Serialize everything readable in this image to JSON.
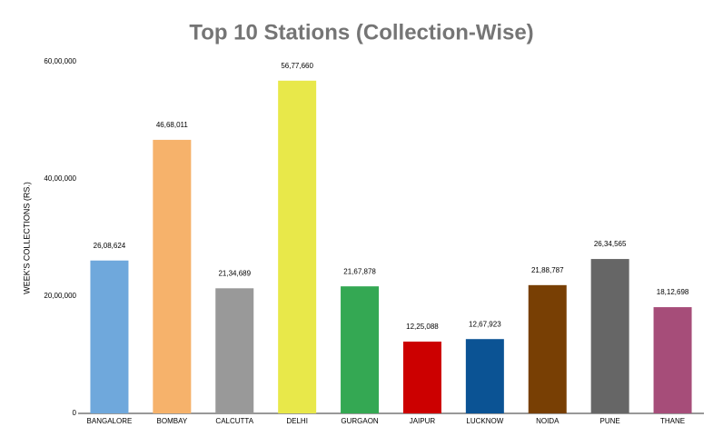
{
  "chart_data": {
    "type": "bar",
    "title": "Top 10 Stations (Collection-Wise)",
    "y_label": "WEEK'S COLLECTIONS (RS.)",
    "categories": [
      "BANGALORE",
      "BOMBAY",
      "CALCUTTA",
      "DELHI",
      "GURGAON",
      "JAIPUR",
      "LUCKNOW",
      "NOIDA",
      "PUNE",
      "THANE"
    ],
    "values": [
      2608624,
      4668011,
      2134689,
      5677660,
      2167878,
      1225088,
      1267923,
      2188787,
      2634565,
      1812698
    ],
    "value_labels": [
      "26,08,624",
      "46,68,011",
      "21,34,689",
      "56,77,660",
      "21,67,878",
      "12,25,088",
      "12,67,923",
      "21,88,787",
      "26,34,565",
      "18,12,698"
    ],
    "colors": [
      "#6fa8dc",
      "#f6b26b",
      "#999999",
      "#e8e84a",
      "#34a853",
      "#cc0000",
      "#0b5394",
      "#783f04",
      "#666666",
      "#a64d79"
    ],
    "ylim": [
      0,
      6000000
    ],
    "yticks": [
      0,
      {
        "value": 2000000,
        "label": "20,00,000"
      },
      {
        "value": 4000000,
        "label": "40,00,000"
      },
      {
        "value": 6000000,
        "label": "60,00,000"
      }
    ],
    "grid": false
  }
}
